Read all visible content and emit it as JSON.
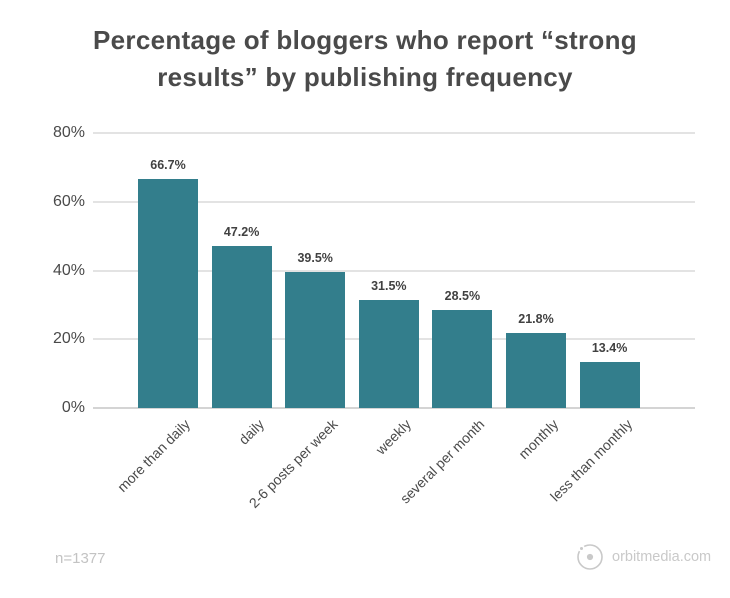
{
  "header": {
    "title_lines": [
      "Percentage of bloggers who report “strong",
      "results” by publishing frequency"
    ]
  },
  "chart_data": {
    "type": "bar",
    "title": "Percentage of bloggers who report “strong results” by publishing frequency",
    "categories": [
      "more than daily",
      "daily",
      "2-6 posts per week",
      "weekly",
      "several per month",
      "monthly",
      "less than monthly"
    ],
    "values": [
      66.7,
      47.2,
      39.5,
      31.5,
      28.5,
      21.8,
      13.4
    ],
    "value_labels": [
      "66.7%",
      "47.2%",
      "39.5%",
      "31.5%",
      "28.5%",
      "21.8%",
      "13.4%"
    ],
    "xlabel": "",
    "ylabel": "",
    "ylim": [
      0,
      80
    ],
    "ytick_values": [
      0,
      20,
      40,
      60,
      80
    ],
    "ytick_labels": [
      "0%",
      "20%",
      "40%",
      "60%",
      "80%"
    ],
    "grid": true,
    "legend": false,
    "x_tick_rotation": -45,
    "bar_color": "#337e8c"
  },
  "footer": {
    "sample_size": "n=1377",
    "source_text": "orbitmedia.com",
    "logo": "orbit-circle-logo"
  },
  "colors": {
    "bar": "#337e8c",
    "title_text": "#4a4a4a",
    "axis_text": "#4a4a4a",
    "value_label_text": "#414141",
    "gridline": "#e3e3e3",
    "baseline": "#d4d4d4",
    "muted_text": "#c6c6c6",
    "background": "#ffffff"
  }
}
